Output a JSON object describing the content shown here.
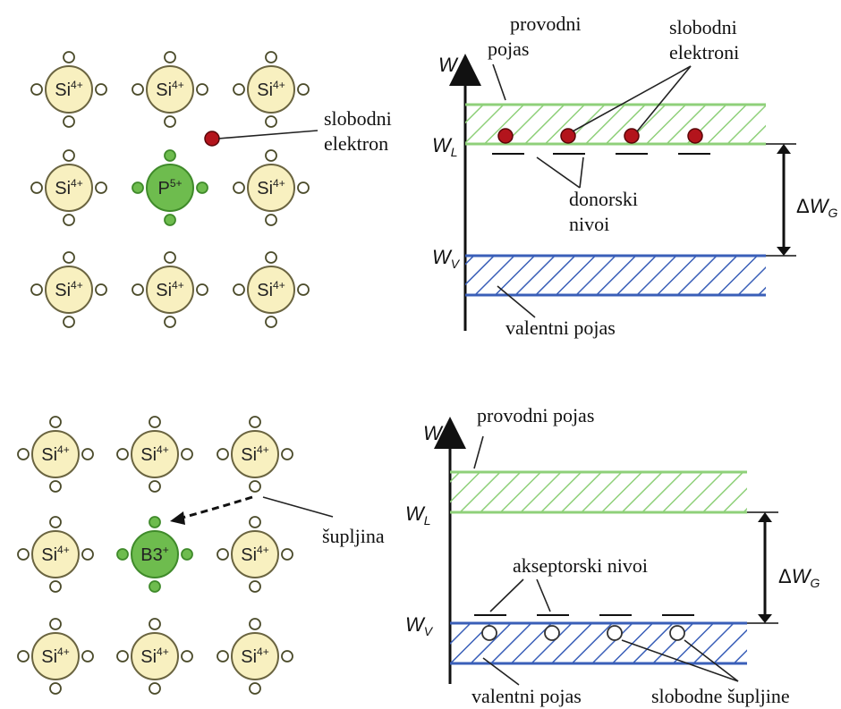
{
  "lattice_n": {
    "host_symbol": "Si",
    "host_charge": "4+",
    "dopant_symbol": "P",
    "dopant_charge": "5+",
    "free_electron_label": [
      "slobodni",
      "elektron"
    ]
  },
  "band_n": {
    "axis_letter": "W",
    "conduction_level": {
      "letter": "W",
      "sub": "L"
    },
    "valence_level": {
      "letter": "W",
      "sub": "V"
    },
    "gap": {
      "prefix": "ΔW",
      "sub": "G"
    },
    "conduction_band_label": [
      "provodni",
      "pojas"
    ],
    "free_electrons_label": [
      "slobodni",
      "elektroni"
    ],
    "donor_levels_label": [
      "donorski",
      "nivoi"
    ],
    "valence_band_label": "valentni pojas"
  },
  "lattice_p": {
    "host_symbol": "Si",
    "host_charge": "4+",
    "dopant_symbol": "B3",
    "dopant_charge": "+",
    "hole_label": "šupljina"
  },
  "band_p": {
    "axis_letter": "W",
    "conduction_level": {
      "letter": "W",
      "sub": "L"
    },
    "valence_level": {
      "letter": "W",
      "sub": "V"
    },
    "gap": {
      "prefix": "ΔW",
      "sub": "G"
    },
    "conduction_band_label": "provodni pojas",
    "acceptor_levels_label": "akseptorski nivoi",
    "valence_band_label": "valentni pojas",
    "free_holes_label": "slobodne šupljine"
  },
  "colors": {
    "si_fill": "#f8f0c0",
    "dopant_fill": "#6ebc4e",
    "conduction_band": "#8fd07a",
    "valence_band": "#3a5fb8",
    "free_electron": "#b3141c"
  }
}
